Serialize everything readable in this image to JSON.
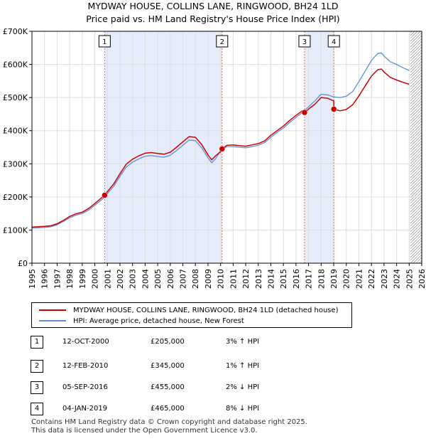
{
  "title": {
    "line1": "MYDWAY HOUSE, COLLINS LANE, RINGWOOD, BH24 1LD",
    "line2": "Price paid vs. HM Land Registry's House Price Index (HPI)"
  },
  "colors": {
    "property": "#cc0000",
    "hpi": "#5b8fd6",
    "shade": "#e4ebfa",
    "vline": "#e06666",
    "grid": "#dddddd"
  },
  "chart_data": {
    "type": "line",
    "title": "Price paid vs. HM Land Registry's House Price Index (HPI)",
    "xlim": [
      1995,
      2026
    ],
    "ylim": [
      0,
      700000
    ],
    "x_ticks": [
      "1995",
      "1996",
      "1997",
      "1998",
      "1999",
      "2000",
      "2001",
      "2002",
      "2003",
      "2004",
      "2005",
      "2006",
      "2007",
      "2008",
      "2009",
      "2010",
      "2011",
      "2012",
      "2013",
      "2014",
      "2015",
      "2016",
      "2017",
      "2018",
      "2019",
      "2020",
      "2021",
      "2022",
      "2023",
      "2024",
      "2025",
      "2026"
    ],
    "y_ticks": [
      {
        "value": 0,
        "label": "£0"
      },
      {
        "value": 100000,
        "label": "£100K"
      },
      {
        "value": 200000,
        "label": "£200K"
      },
      {
        "value": 300000,
        "label": "£300K"
      },
      {
        "value": 400000,
        "label": "£400K"
      },
      {
        "value": 500000,
        "label": "£500K"
      },
      {
        "value": 600000,
        "label": "£600K"
      },
      {
        "value": 700000,
        "label": "£700K"
      }
    ],
    "shaded_ranges": [
      [
        2000.78,
        2010.12
      ],
      [
        2016.68,
        2019.01
      ]
    ],
    "future_hatch_from": 2025.1,
    "sales": [
      {
        "id": "1",
        "x": 2000.78,
        "y": 205000
      },
      {
        "id": "2",
        "x": 2010.12,
        "y": 345000
      },
      {
        "id": "3",
        "x": 2016.68,
        "y": 455000
      },
      {
        "id": "4",
        "x": 2019.01,
        "y": 465000
      }
    ],
    "series": [
      {
        "name": "HPI: Average price, detached house, New Forest",
        "color": "#5b8fd6",
        "x": [
          1995.0,
          1995.5,
          1996.0,
          1996.5,
          1997.0,
          1997.5,
          1998.0,
          1998.5,
          1999.0,
          1999.5,
          2000.0,
          2000.5,
          2000.78,
          2001.0,
          2001.5,
          2002.0,
          2002.5,
          2003.0,
          2003.5,
          2004.0,
          2004.5,
          2005.0,
          2005.5,
          2006.0,
          2006.5,
          2007.0,
          2007.5,
          2008.0,
          2008.5,
          2009.0,
          2009.3,
          2009.6,
          2010.0,
          2010.5,
          2011.0,
          2011.5,
          2012.0,
          2012.5,
          2013.0,
          2013.5,
          2014.0,
          2014.5,
          2015.0,
          2015.5,
          2016.0,
          2016.5,
          2017.0,
          2017.5,
          2018.0,
          2018.5,
          2019.0,
          2019.5,
          2020.0,
          2020.5,
          2021.0,
          2021.5,
          2022.0,
          2022.5,
          2022.8,
          2023.0,
          2023.5,
          2024.0,
          2024.5,
          2025.0
        ],
        "values": [
          106000,
          107000,
          108000,
          110000,
          116000,
          126000,
          137000,
          145000,
          150000,
          160000,
          175000,
          190000,
          199000,
          210000,
          232000,
          262000,
          290000,
          305000,
          315000,
          323000,
          325000,
          322000,
          320000,
          326000,
          340000,
          356000,
          372000,
          370000,
          348000,
          318000,
          303000,
          315000,
          340000,
          352000,
          352000,
          350000,
          348000,
          352000,
          356000,
          364000,
          380000,
          395000,
          408000,
          425000,
          440000,
          455000,
          472000,
          490000,
          510000,
          508000,
          502000,
          500000,
          504000,
          518000,
          548000,
          580000,
          612000,
          633000,
          635000,
          625000,
          608000,
          600000,
          590000,
          582000
        ]
      },
      {
        "name": "MYDWAY HOUSE, COLLINS LANE, RINGWOOD, BH24 1LD (detached house)",
        "color": "#cc0000",
        "x": [
          1995.0,
          1995.5,
          1996.0,
          1996.5,
          1997.0,
          1997.5,
          1998.0,
          1998.5,
          1999.0,
          1999.5,
          2000.0,
          2000.5,
          2000.78,
          2001.0,
          2001.5,
          2002.0,
          2002.5,
          2003.0,
          2003.5,
          2004.0,
          2004.5,
          2005.0,
          2005.5,
          2006.0,
          2006.5,
          2007.0,
          2007.5,
          2008.0,
          2008.5,
          2009.0,
          2009.3,
          2009.6,
          2010.0,
          2010.12,
          2010.5,
          2011.0,
          2011.5,
          2012.0,
          2012.5,
          2013.0,
          2013.5,
          2014.0,
          2014.5,
          2015.0,
          2015.5,
          2016.0,
          2016.5,
          2016.68,
          2017.0,
          2017.5,
          2018.0,
          2018.5,
          2019.0,
          2019.01,
          2019.5,
          2020.0,
          2020.5,
          2021.0,
          2021.5,
          2022.0,
          2022.5,
          2022.8,
          2023.0,
          2023.5,
          2024.0,
          2024.5,
          2025.0
        ],
        "values": [
          109000,
          110000,
          111000,
          113000,
          119000,
          129000,
          141000,
          149000,
          154000,
          165000,
          180000,
          196000,
          205000,
          216000,
          239000,
          270000,
          299000,
          314000,
          324000,
          332000,
          334000,
          331000,
          329000,
          335000,
          350000,
          366000,
          382000,
          380000,
          358000,
          327000,
          312000,
          324000,
          336000,
          345000,
          356000,
          357000,
          355000,
          353000,
          357000,
          361000,
          369000,
          386000,
          400000,
          414000,
          431000,
          446000,
          460000,
          455000,
          465000,
          480000,
          500000,
          498000,
          490000,
          465000,
          460000,
          464000,
          478000,
          505000,
          535000,
          565000,
          584000,
          586000,
          577000,
          561000,
          553000,
          546000,
          540000
        ]
      }
    ]
  },
  "legend": {
    "property_label": "MYDWAY HOUSE, COLLINS LANE, RINGWOOD, BH24 1LD (detached house)",
    "hpi_label": "HPI: Average price, detached house, New Forest"
  },
  "transactions": [
    {
      "num": "1",
      "date": "12-OCT-2000",
      "price": "£205,000",
      "hpi": "3% ↑ HPI"
    },
    {
      "num": "2",
      "date": "12-FEB-2010",
      "price": "£345,000",
      "hpi": "1% ↑ HPI"
    },
    {
      "num": "3",
      "date": "05-SEP-2016",
      "price": "£455,000",
      "hpi": "2% ↓ HPI"
    },
    {
      "num": "4",
      "date": "04-JAN-2019",
      "price": "£465,000",
      "hpi": "8% ↓ HPI"
    }
  ],
  "footer": {
    "line1": "Contains HM Land Registry data © Crown copyright and database right 2025.",
    "line2": "This data is licensed under the Open Government Licence v3.0."
  }
}
